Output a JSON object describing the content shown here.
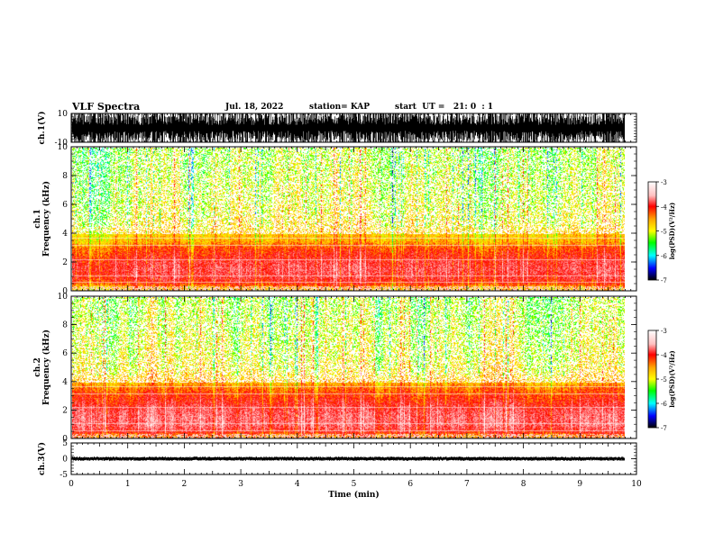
{
  "header": {
    "title": "VLF Spectra",
    "date": "Jul. 18, 2022",
    "station": "station= KAP",
    "start_ut": "start  UT =   21: 0  : 1"
  },
  "chart_data": [
    {
      "type": "line",
      "panel": "ch1-waveform",
      "ylabel": "ch.1(V)",
      "ylim": [
        -10,
        10
      ],
      "y_ticks": [
        "10",
        "-10"
      ],
      "xlim": [
        0,
        10
      ],
      "series": [
        {
          "amplitude_range": [
            -10,
            10
          ]
        }
      ],
      "color": "#000000"
    },
    {
      "type": "heatmap",
      "panel": "ch1-spectrogram",
      "ylabel": "ch.1\nFrequency  (kHz)",
      "ylim": [
        0,
        10
      ],
      "y_ticks": [
        "0",
        "2",
        "4",
        "6",
        "8",
        "10"
      ],
      "xlim": [
        0,
        9.8
      ],
      "colorbar": {
        "label": "log(PSD)(V²/Hz)",
        "range": [
          -7,
          -3
        ],
        "ticks": [
          "-3",
          "-4",
          "-5",
          "-6",
          "-7"
        ]
      },
      "intensity_profile": {
        "frequency_khz": [
          0.2,
          0.6,
          1.0,
          1.5,
          2.0,
          2.5,
          3.0,
          3.5,
          4.0,
          5.0,
          6.0,
          8.0,
          10.0
        ],
        "typical_log_psd": [
          -4.6,
          -4.0,
          -3.8,
          -3.7,
          -3.8,
          -4.0,
          -4.2,
          -4.6,
          -4.7,
          -4.9,
          -5.0,
          -5.1,
          -5.2
        ]
      }
    },
    {
      "type": "heatmap",
      "panel": "ch2-spectrogram",
      "ylabel": "ch.2\nFrequency  (kHz)",
      "ylim": [
        0,
        10
      ],
      "y_ticks": [
        "0",
        "2",
        "4",
        "6",
        "8",
        "10"
      ],
      "xlim": [
        0,
        9.8
      ],
      "colorbar": {
        "label": "log(PSD)(V²/Hz)",
        "range": [
          -7,
          -3
        ],
        "ticks": [
          "-3",
          "-4",
          "-5",
          "-6",
          "-7"
        ]
      },
      "intensity_profile": {
        "frequency_khz": [
          0.2,
          0.6,
          1.0,
          1.5,
          2.0,
          2.5,
          3.0,
          3.5,
          4.0,
          5.0,
          6.0,
          8.0,
          10.0
        ],
        "typical_log_psd": [
          -4.4,
          -3.8,
          -3.6,
          -3.6,
          -3.7,
          -3.9,
          -4.1,
          -4.3,
          -4.6,
          -4.9,
          -5.0,
          -5.1,
          -5.2
        ]
      }
    },
    {
      "type": "line",
      "panel": "ch3-waveform",
      "ylabel": "ch.3(V)",
      "ylim": [
        -5,
        5
      ],
      "y_ticks": [
        "5",
        "0",
        "-5"
      ],
      "xlim": [
        0,
        10
      ],
      "series": [
        {
          "level": 0,
          "amplitude_range": [
            -0.6,
            0.6
          ]
        }
      ],
      "color": "#000000"
    }
  ],
  "x_axis": {
    "label": "Time  (min)",
    "ticks": [
      "0",
      "1",
      "2",
      "3",
      "4",
      "5",
      "6",
      "7",
      "8",
      "9",
      "10"
    ],
    "range": [
      0,
      10
    ]
  }
}
